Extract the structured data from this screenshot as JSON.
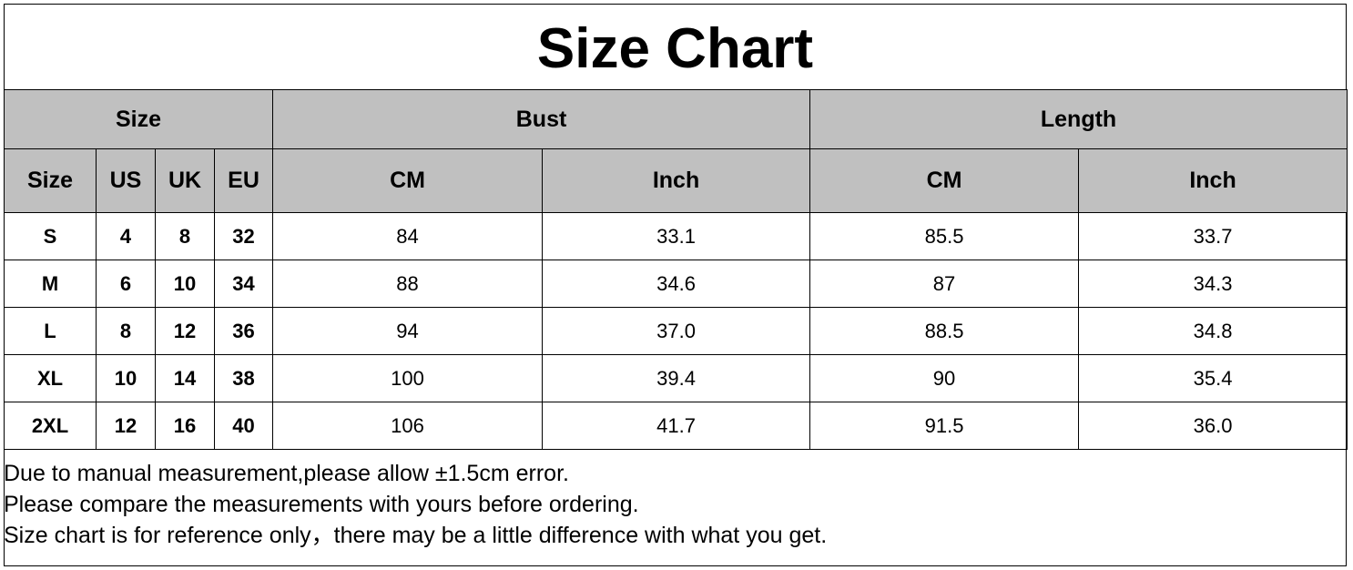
{
  "title": "Size Chart",
  "header_groups": [
    "Size",
    "Bust",
    "Length"
  ],
  "subheaders": [
    "Size",
    "US",
    "UK",
    "EU",
    "CM",
    "Inch",
    "CM",
    "Inch"
  ],
  "rows": [
    [
      "S",
      "4",
      "8",
      "32",
      "84",
      "33.1",
      "85.5",
      "33.7"
    ],
    [
      "M",
      "6",
      "10",
      "34",
      "88",
      "34.6",
      "87",
      "34.3"
    ],
    [
      "L",
      "8",
      "12",
      "36",
      "94",
      "37.0",
      "88.5",
      "34.8"
    ],
    [
      "XL",
      "10",
      "14",
      "38",
      "100",
      "39.4",
      "90",
      "35.4"
    ],
    [
      "2XL",
      "12",
      "16",
      "40",
      "106",
      "41.7",
      "91.5",
      "36.0"
    ]
  ],
  "notes": [
    "Due to manual measurement,please allow ±1.5cm error.",
    "Please compare the measurements with yours before ordering.",
    "Size chart is for reference only，there may be a little difference with what you get."
  ],
  "colors": {
    "header_bg": "#c0c0c0",
    "border": "#000000"
  }
}
